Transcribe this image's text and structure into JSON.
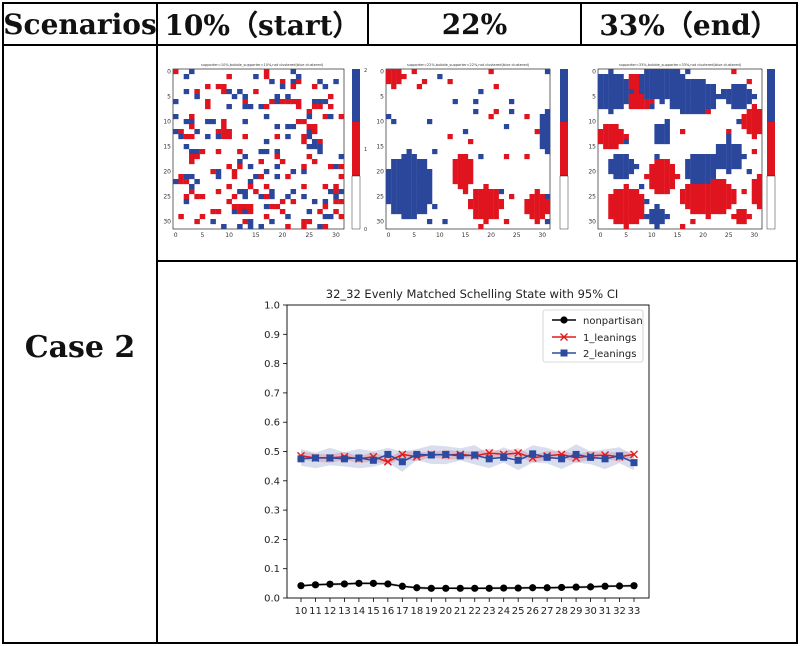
{
  "table": {
    "header_first": "Scenarios",
    "columns": [
      "10%（start）",
      "22%",
      "33%（end）"
    ],
    "row_label": "Case 2"
  },
  "heatmaps": {
    "titles": [
      "supporter=10%,bubble_supporter=10%,not clustered(blue clustered)",
      "supporter=22%,bubble_supporter=22%,not clustered(blue clustered)",
      "supporter=33%,bubble_supporter=33%,not clustered(blue clustered)"
    ],
    "axis_ticks": [
      "0",
      "5",
      "10",
      "15",
      "20",
      "25",
      "30"
    ],
    "colorbar_ticks": [
      "2",
      "1",
      "0"
    ],
    "colors": {
      "empty": "#ffffff",
      "red": "#e0141e",
      "blue": "#2b479b"
    }
  },
  "chart_data": {
    "type": "line",
    "title": "32_32 Evenly Matched Schelling State with 95% CI",
    "x": [
      10,
      11,
      12,
      13,
      14,
      15,
      16,
      17,
      18,
      19,
      20,
      21,
      22,
      23,
      24,
      25,
      26,
      27,
      28,
      29,
      30,
      31,
      32,
      33
    ],
    "ylim": [
      0.0,
      1.0
    ],
    "yticks": [
      "0.0",
      "0.1",
      "0.2",
      "0.3",
      "0.4",
      "0.5",
      "0.6",
      "0.7",
      "0.8",
      "0.9",
      "1.0"
    ],
    "legend_position": "top-right",
    "series": [
      {
        "name": "nonpartisan",
        "color": "#000000",
        "marker": "circle",
        "values": [
          0.042,
          0.045,
          0.047,
          0.048,
          0.05,
          0.05,
          0.048,
          0.04,
          0.035,
          0.033,
          0.033,
          0.033,
          0.033,
          0.033,
          0.034,
          0.034,
          0.035,
          0.035,
          0.036,
          0.037,
          0.038,
          0.04,
          0.041,
          0.042
        ],
        "ci": 0.004
      },
      {
        "name": "1_leanings",
        "color": "#e31a1c",
        "marker": "x",
        "values": [
          0.485,
          0.478,
          0.478,
          0.482,
          0.475,
          0.482,
          0.465,
          0.49,
          0.482,
          0.49,
          0.488,
          0.49,
          0.485,
          0.495,
          0.49,
          0.495,
          0.478,
          0.485,
          0.49,
          0.478,
          0.485,
          0.488,
          0.482,
          0.49
        ],
        "ci": 0.012
      },
      {
        "name": "2_leanings",
        "color": "#2b4aa0",
        "marker": "square",
        "values": [
          0.475,
          0.478,
          0.478,
          0.475,
          0.478,
          0.47,
          0.49,
          0.465,
          0.49,
          0.488,
          0.49,
          0.485,
          0.488,
          0.475,
          0.48,
          0.47,
          0.492,
          0.48,
          0.475,
          0.49,
          0.48,
          0.475,
          0.485,
          0.462
        ],
        "ci": 0.025
      }
    ]
  }
}
